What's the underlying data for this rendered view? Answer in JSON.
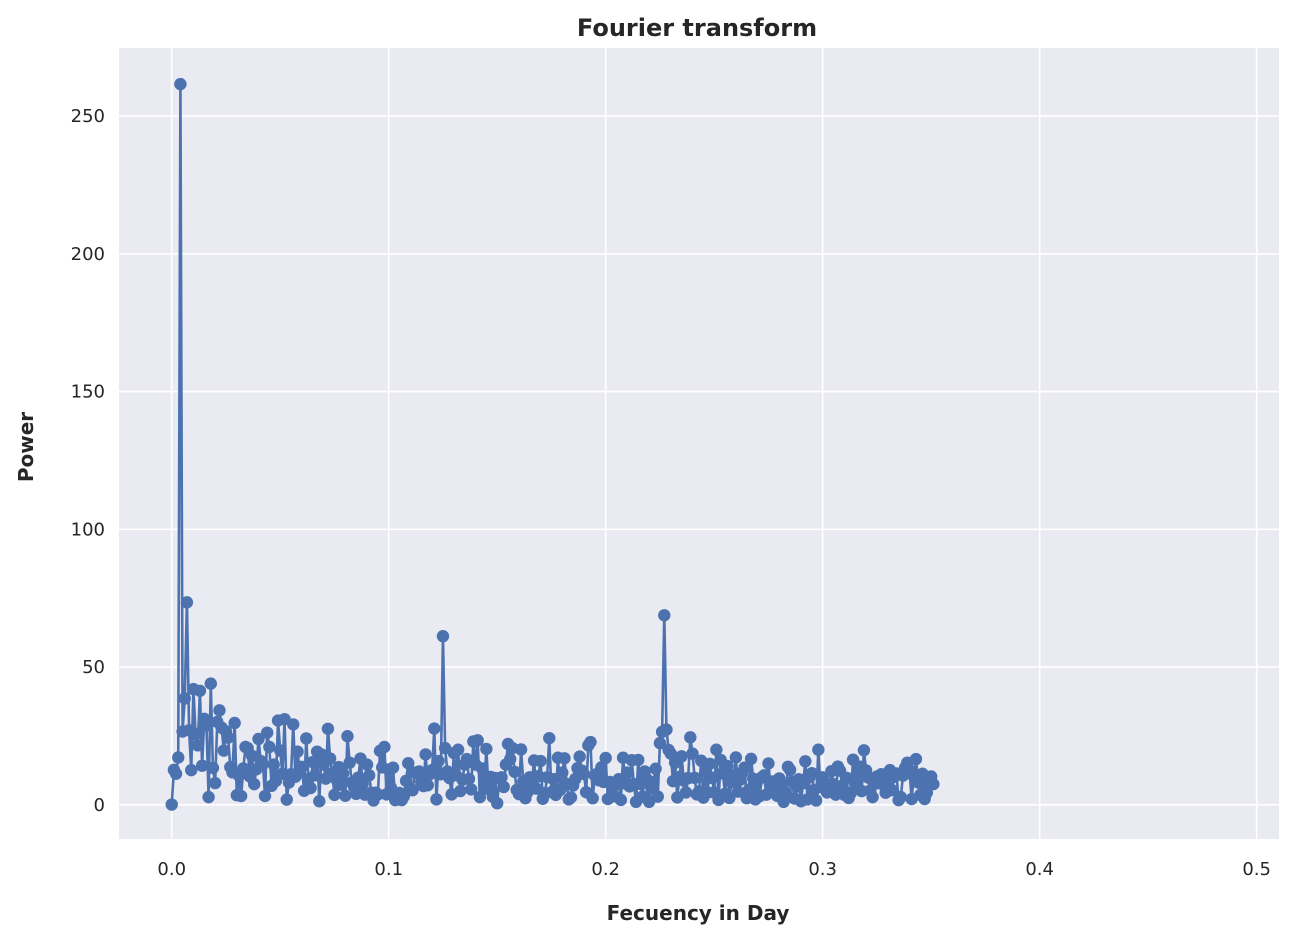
{
  "colors": {
    "plot_background": "#EAEAF2",
    "grid": "#FFFFFF",
    "series": "#4C72B0",
    "text": "#262626"
  },
  "chart_data": {
    "type": "line",
    "title": "Fourier transform",
    "xlabel": "Fecuency in Day",
    "ylabel": "Power",
    "xlim": [
      -0.0243,
      0.5103
    ],
    "ylim": [
      -12.4,
      274.7
    ],
    "xticks": [
      0.0,
      0.1,
      0.2,
      0.3,
      0.4,
      0.5
    ],
    "xtick_labels": [
      "0.0",
      "0.1",
      "0.2",
      "0.3",
      "0.4",
      "0.5"
    ],
    "yticks": [
      0,
      50,
      100,
      150,
      200,
      250
    ],
    "ytick_labels": [
      "0",
      "50",
      "100",
      "150",
      "200",
      "250"
    ],
    "grid": true,
    "marker": "circle",
    "x_step": 0.001,
    "series": [
      {
        "values": [
          0.1,
          12.7,
          11.3,
          17.2,
          261.6,
          26.6,
          38.6,
          73.5,
          27.1,
          12.6,
          42.0,
          25.6,
          21.6,
          41.4,
          14.2,
          31.2,
          28.8,
          2.8,
          44.0,
          13.4,
          7.9,
          30.1,
          34.3,
          28.0,
          19.7,
          26.7,
          24.4,
          13.7,
          11.8,
          29.7,
          3.5,
          10.6,
          3.2,
          13.2,
          21.0,
          20.6,
          10.3,
          17.8,
          7.5,
          12.9,
          23.9,
          15.9,
          14.9,
          3.2,
          26.2,
          21.0,
          6.9,
          14.6,
          8.7,
          30.6,
          19.7,
          11.3,
          31.1,
          1.9,
          8.1,
          11.1,
          29.2,
          10.2,
          19.3,
          12.1,
          13.8,
          5.1,
          24.1,
          9.3,
          6.1,
          15.5,
          10.7,
          19.3,
          1.3,
          18.3,
          14.6,
          9.5,
          27.6,
          16.8,
          11.5,
          3.6,
          9.1,
          13.7,
          7.3,
          11.4,
          3.3,
          24.9,
          15.3,
          8.1,
          6.6,
          4.0,
          9.9,
          16.8,
          7.6,
          3.7,
          14.6,
          10.7,
          4.4,
          1.6,
          4.4,
          3.8,
          19.6,
          13.6,
          21.0,
          3.8,
          12.8,
          6.3,
          13.5,
          1.7,
          3.3,
          4.3,
          1.7,
          3.1,
          8.7,
          15.1,
          6.0,
          5.3,
          11.7,
          11.5,
          12.1,
          8.3,
          6.8,
          18.3,
          7.1,
          11.1,
          12.6,
          27.7,
          2.0,
          15.9,
          11.1,
          61.2,
          20.6,
          12.1,
          9.7,
          3.8,
          18.8,
          10.8,
          20.0,
          5.0,
          9.1,
          14.6,
          16.6,
          9.4,
          5.6,
          23.0,
          14.6,
          23.4,
          2.8,
          13.2,
          6.6,
          20.3,
          5.7,
          10.1,
          2.9,
          9.7,
          0.6,
          9.7,
          10.0,
          6.5,
          14.6,
          22.1,
          16.6,
          20.6,
          12.0,
          5.4,
          3.9,
          20.1,
          8.5,
          2.4,
          4.6,
          10.0,
          8.7,
          16.1,
          5.9,
          10.4,
          15.9,
          2.2,
          4.2,
          10.0,
          24.2,
          4.6,
          9.3,
          3.6,
          17.1,
          5.4,
          11.7,
          16.9,
          7.6,
          2.0,
          2.7,
          7.0,
          9.4,
          13.3,
          17.5,
          12.4,
          11.2,
          4.6,
          21.6,
          22.8,
          2.4,
          10.6,
          11.2,
          8.9,
          13.6,
          8.3,
          17.0,
          2.1,
          8.3,
          4.1,
          3.1,
          7.4,
          9.3,
          1.8,
          17.1,
          7.8,
          11.7,
          6.7,
          16.2,
          7.5,
          1.1,
          16.3,
          7.6,
          3.0,
          12.1,
          9.3,
          1.1,
          6.1,
          8.2,
          13.1,
          3.0,
          22.4,
          26.5,
          68.8,
          27.3,
          19.9,
          18.6,
          8.6,
          15.3,
          2.7,
          10.1,
          17.6,
          8.8,
          4.5,
          9.7,
          24.5,
          18.6,
          9.8,
          3.8,
          4.9,
          16.0,
          2.6,
          12.2,
          4.5,
          14.9,
          9.8,
          4.5,
          20.0,
          1.8,
          16.3,
          11.4,
          4.0,
          14.1,
          2.5,
          8.3,
          10.7,
          17.2,
          4.8,
          9.1,
          11.7,
          13.5,
          2.4,
          5.5,
          16.7,
          9.5,
          2.0,
          8.8,
          3.2,
          10.0,
          10.7,
          3.7,
          15.0,
          6.3,
          8.5,
          5.3,
          3.3,
          9.6,
          7.5,
          1.1,
          4.5,
          13.8,
          12.7,
          8.4,
          2.3,
          6.6,
          9.3,
          1.3,
          7.9,
          15.8,
          2.0,
          10.0,
          11.5,
          5.4,
          1.6,
          20.0,
          6.4,
          10.0,
          7.9,
          4.5,
          6.0,
          12.2,
          7.5,
          3.7,
          13.9,
          12.4,
          7.0,
          3.6,
          9.8,
          2.5,
          4.3,
          16.4,
          7.4,
          11.3,
          13.9,
          5.0,
          19.8,
          12.5,
          9.9,
          5.3,
          2.8,
          8.6,
          10.3,
          7.8,
          11.1,
          9.3,
          4.4,
          6.6,
          12.6,
          5.3,
          10.2,
          11.4,
          1.7,
          2.8,
          10.6,
          13.5,
          15.3,
          12.5,
          2.1,
          10.4,
          16.6,
          8.1,
          3.6,
          11.3,
          2.1,
          4.4,
          7.5,
          10.3,
          7.5
        ]
      }
    ]
  }
}
